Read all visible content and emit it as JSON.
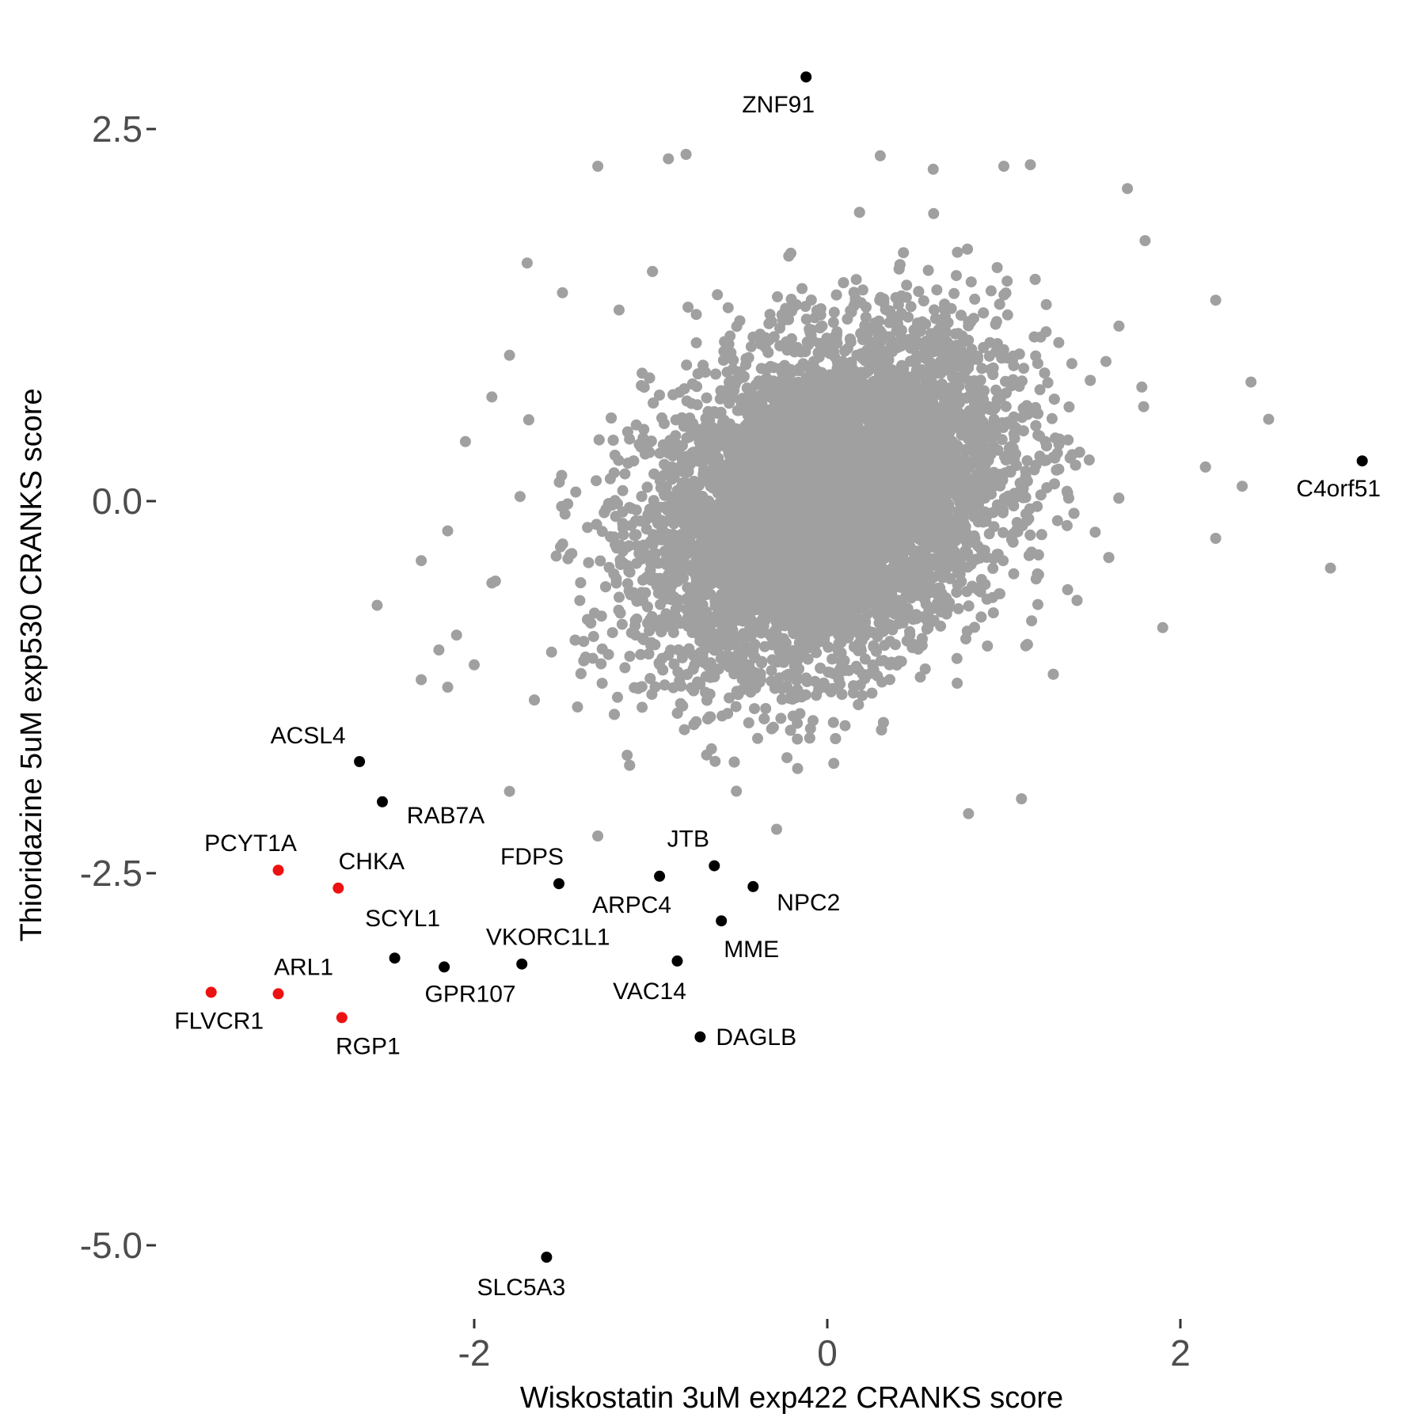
{
  "chart_data": {
    "type": "scatter",
    "xlabel": "Wiskostatin 3uM exp422 CRANKS score",
    "ylabel": "Thioridazine 5uM exp530 CRANKS score",
    "xlim": [
      -3.8,
      3.3
    ],
    "ylim": [
      -5.6,
      3.0
    ],
    "xticks": [
      -2,
      0,
      2
    ],
    "xtick_labels": [
      "-2",
      "0",
      "2"
    ],
    "yticks": [
      -5.0,
      -2.5,
      0.0,
      2.5
    ],
    "ytick_labels": [
      "-5.0",
      "-2.5",
      "0.0",
      "2.5"
    ],
    "grid": false,
    "legend": "none",
    "colors": {
      "background": "#a0a0a0",
      "highlight": "#000000",
      "red": "#ee1111"
    },
    "background_cloud": {
      "color": "#a0a0a0",
      "center": [
        0.0,
        0.0
      ],
      "sd": [
        0.5,
        0.55
      ],
      "correlation": 0.3,
      "approx_count": 9000,
      "outliers": [
        [
          -1.3,
          2.25
        ],
        [
          -0.9,
          2.3
        ],
        [
          -0.8,
          2.33
        ],
        [
          0.3,
          2.32
        ],
        [
          0.6,
          2.23
        ],
        [
          1.0,
          2.25
        ],
        [
          1.15,
          2.26
        ],
        [
          1.7,
          2.1
        ],
        [
          1.8,
          1.75
        ],
        [
          -1.7,
          1.6
        ],
        [
          -1.5,
          1.4
        ],
        [
          -1.8,
          0.98
        ],
        [
          -1.9,
          0.7
        ],
        [
          -2.05,
          0.4
        ],
        [
          -2.15,
          -0.2
        ],
        [
          -2.3,
          -0.4
        ],
        [
          -2.55,
          -0.7
        ],
        [
          -2.1,
          -0.9
        ],
        [
          -2.2,
          -1.0
        ],
        [
          -1.8,
          -1.95
        ],
        [
          -1.3,
          -2.25
        ],
        [
          2.4,
          0.8
        ],
        [
          2.5,
          0.55
        ],
        [
          2.2,
          1.35
        ],
        [
          2.35,
          0.1
        ],
        [
          2.85,
          -0.45
        ],
        [
          2.2,
          -0.25
        ],
        [
          1.9,
          -0.85
        ],
        [
          1.1,
          -2.0
        ],
        [
          0.8,
          -2.1
        ],
        [
          -2.3,
          -1.2
        ],
        [
          -2.15,
          -1.25
        ],
        [
          -2.0,
          -1.1
        ],
        [
          -1.9,
          -0.55
        ]
      ]
    },
    "series": [
      {
        "name": "",
        "color": "#000000",
        "points": [
          {
            "label": "ZNF91",
            "x": -0.12,
            "y": 2.85
          },
          {
            "label": "C4orf51",
            "x": 3.03,
            "y": 0.27
          },
          {
            "label": "ACSL4",
            "x": -2.65,
            "y": -1.75
          },
          {
            "label": "RAB7A",
            "x": -2.52,
            "y": -2.02
          },
          {
            "label": "FDPS",
            "x": -1.52,
            "y": -2.57
          },
          {
            "label": "JTB",
            "x": -0.64,
            "y": -2.45
          },
          {
            "label": "ARPC4",
            "x": -0.95,
            "y": -2.52
          },
          {
            "label": "NPC2",
            "x": -0.42,
            "y": -2.59
          },
          {
            "label": "MME",
            "x": -0.6,
            "y": -2.82
          },
          {
            "label": "SCYL1",
            "x": -2.45,
            "y": -3.07
          },
          {
            "label": "GPR107",
            "x": -2.17,
            "y": -3.13
          },
          {
            "label": "VKORC1L1",
            "x": -1.73,
            "y": -3.11
          },
          {
            "label": "VAC14",
            "x": -0.85,
            "y": -3.09
          },
          {
            "label": "DAGLB",
            "x": -0.72,
            "y": -3.6
          },
          {
            "label": "SLC5A3",
            "x": -1.59,
            "y": -5.08
          }
        ]
      },
      {
        "name": "",
        "color": "#ee1111",
        "points": [
          {
            "label": "PCYT1A",
            "x": -3.11,
            "y": -2.48
          },
          {
            "label": "CHKA",
            "x": -2.77,
            "y": -2.6
          },
          {
            "label": "ARL1",
            "x": -3.11,
            "y": -3.31
          },
          {
            "label": "FLVCR1",
            "x": -3.49,
            "y": -3.3
          },
          {
            "label": "RGP1",
            "x": -2.75,
            "y": -3.47
          }
        ]
      }
    ]
  }
}
